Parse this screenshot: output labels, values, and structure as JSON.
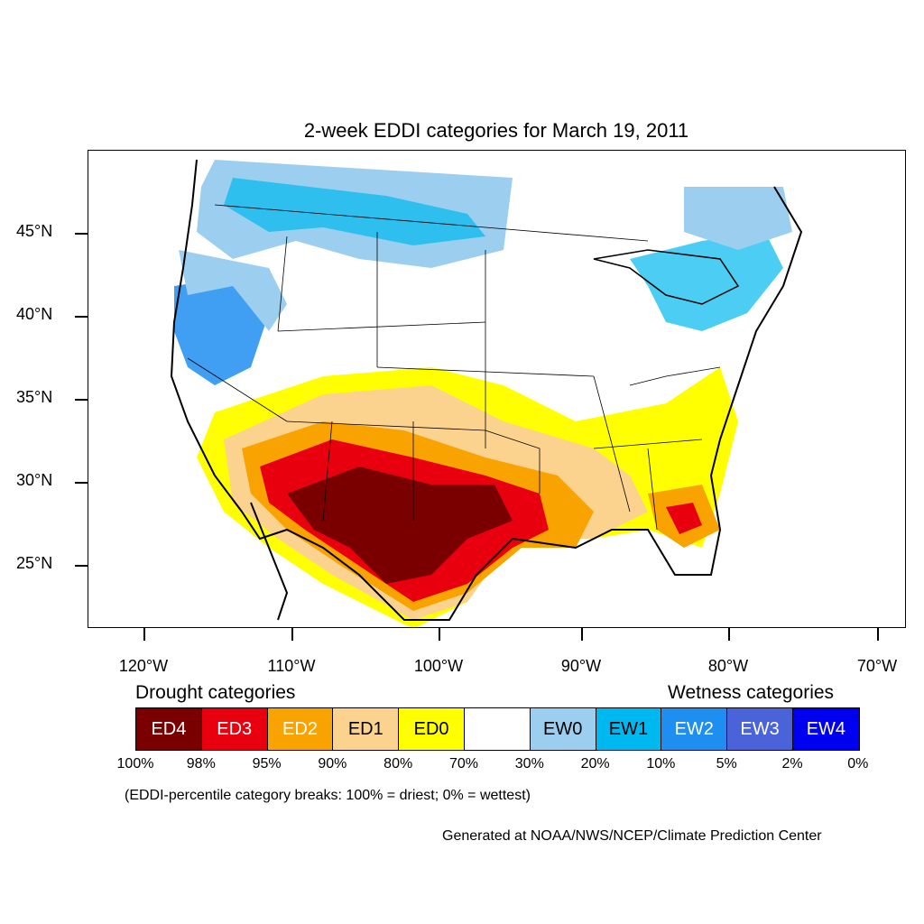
{
  "title": "2-week EDDI categories for March 19, 2011",
  "lat_labels": [
    "45°N",
    "40°N",
    "35°N",
    "30°N",
    "25°N"
  ],
  "lon_labels": [
    "120°W",
    "110°W",
    "100°W",
    "90°W",
    "80°W",
    "70°W"
  ],
  "legend": {
    "drought_heading": "Drought categories",
    "wetness_heading": "Wetness categories",
    "categories": [
      {
        "label": "ED4",
        "color": "#7a0000",
        "text_color": "#ffffff"
      },
      {
        "label": "ED3",
        "color": "#e8000f",
        "text_color": "#ffffff"
      },
      {
        "label": "ED2",
        "color": "#f9a300",
        "text_color": "#ffffff"
      },
      {
        "label": "ED1",
        "color": "#fcd28f",
        "text_color": "#000000"
      },
      {
        "label": "ED0",
        "color": "#ffff00",
        "text_color": "#000000"
      },
      {
        "label": "",
        "color": "#ffffff",
        "text_color": "#000000"
      },
      {
        "label": "EW0",
        "color": "#9ccfef",
        "text_color": "#000000"
      },
      {
        "label": "EW1",
        "color": "#00b8f0",
        "text_color": "#000000"
      },
      {
        "label": "EW2",
        "color": "#1e8ef0",
        "text_color": "#ffffff"
      },
      {
        "label": "EW3",
        "color": "#4a63d8",
        "text_color": "#ffffff"
      },
      {
        "label": "EW4",
        "color": "#0000f0",
        "text_color": "#ffffff"
      }
    ],
    "percentiles": [
      "100%",
      "98%",
      "95%",
      "90%",
      "80%",
      "70%",
      "30%",
      "20%",
      "10%",
      "5%",
      "2%",
      "0%"
    ]
  },
  "note": "(EDDI-percentile category breaks: 100% = driest; 0% = wettest)",
  "credit": "Generated at NOAA/NWS/NCEP/Climate Prediction Center"
}
